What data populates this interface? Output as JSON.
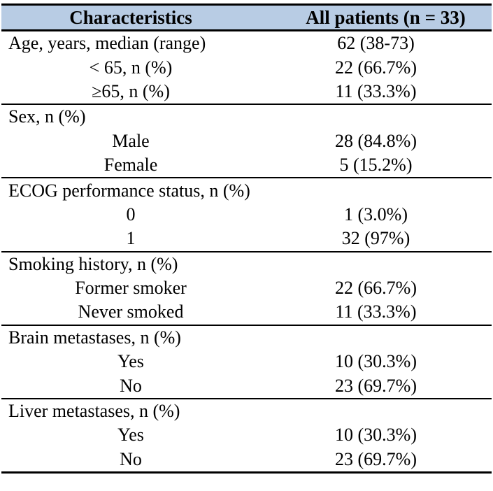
{
  "table": {
    "colors": {
      "header_bg": "#b8cce4",
      "border": "#000000",
      "text": "#000000"
    },
    "header": {
      "col1": "Characteristics",
      "col2": "All patients (n = 33)"
    },
    "sections": [
      {
        "rows": [
          {
            "label": "Age, years, median (range)",
            "value": "62 (38-73)",
            "align": "left"
          },
          {
            "label": "< 65, n (%)",
            "value": "22 (66.7%)",
            "align": "center"
          },
          {
            "label": "≥65, n (%)",
            "value": "11 (33.3%)",
            "align": "center"
          }
        ]
      },
      {
        "rows": [
          {
            "label": "Sex, n (%)",
            "value": "",
            "align": "left"
          },
          {
            "label": "Male",
            "value": "28 (84.8%)",
            "align": "center"
          },
          {
            "label": "Female",
            "value": "5 (15.2%)",
            "align": "center"
          }
        ]
      },
      {
        "rows": [
          {
            "label": "ECOG performance status, n (%)",
            "value": "",
            "align": "left"
          },
          {
            "label": "0",
            "value": "1 (3.0%)",
            "align": "center"
          },
          {
            "label": "1",
            "value": "32 (97%)",
            "align": "center"
          }
        ]
      },
      {
        "rows": [
          {
            "label": "Smoking history, n (%)",
            "value": "",
            "align": "left"
          },
          {
            "label": "Former smoker",
            "value": "22 (66.7%)",
            "align": "center"
          },
          {
            "label": "Never smoked",
            "value": "11 (33.3%)",
            "align": "center"
          }
        ]
      },
      {
        "rows": [
          {
            "label": "Brain metastases, n (%)",
            "value": "",
            "align": "left"
          },
          {
            "label": "Yes",
            "value": "10 (30.3%)",
            "align": "center"
          },
          {
            "label": "No",
            "value": "23 (69.7%)",
            "align": "center"
          }
        ]
      },
      {
        "rows": [
          {
            "label": "Liver metastases, n (%)",
            "value": "",
            "align": "left"
          },
          {
            "label": "Yes",
            "value": "10 (30.3%)",
            "align": "center"
          },
          {
            "label": "No",
            "value": "23 (69.7%)",
            "align": "center"
          }
        ]
      }
    ]
  }
}
